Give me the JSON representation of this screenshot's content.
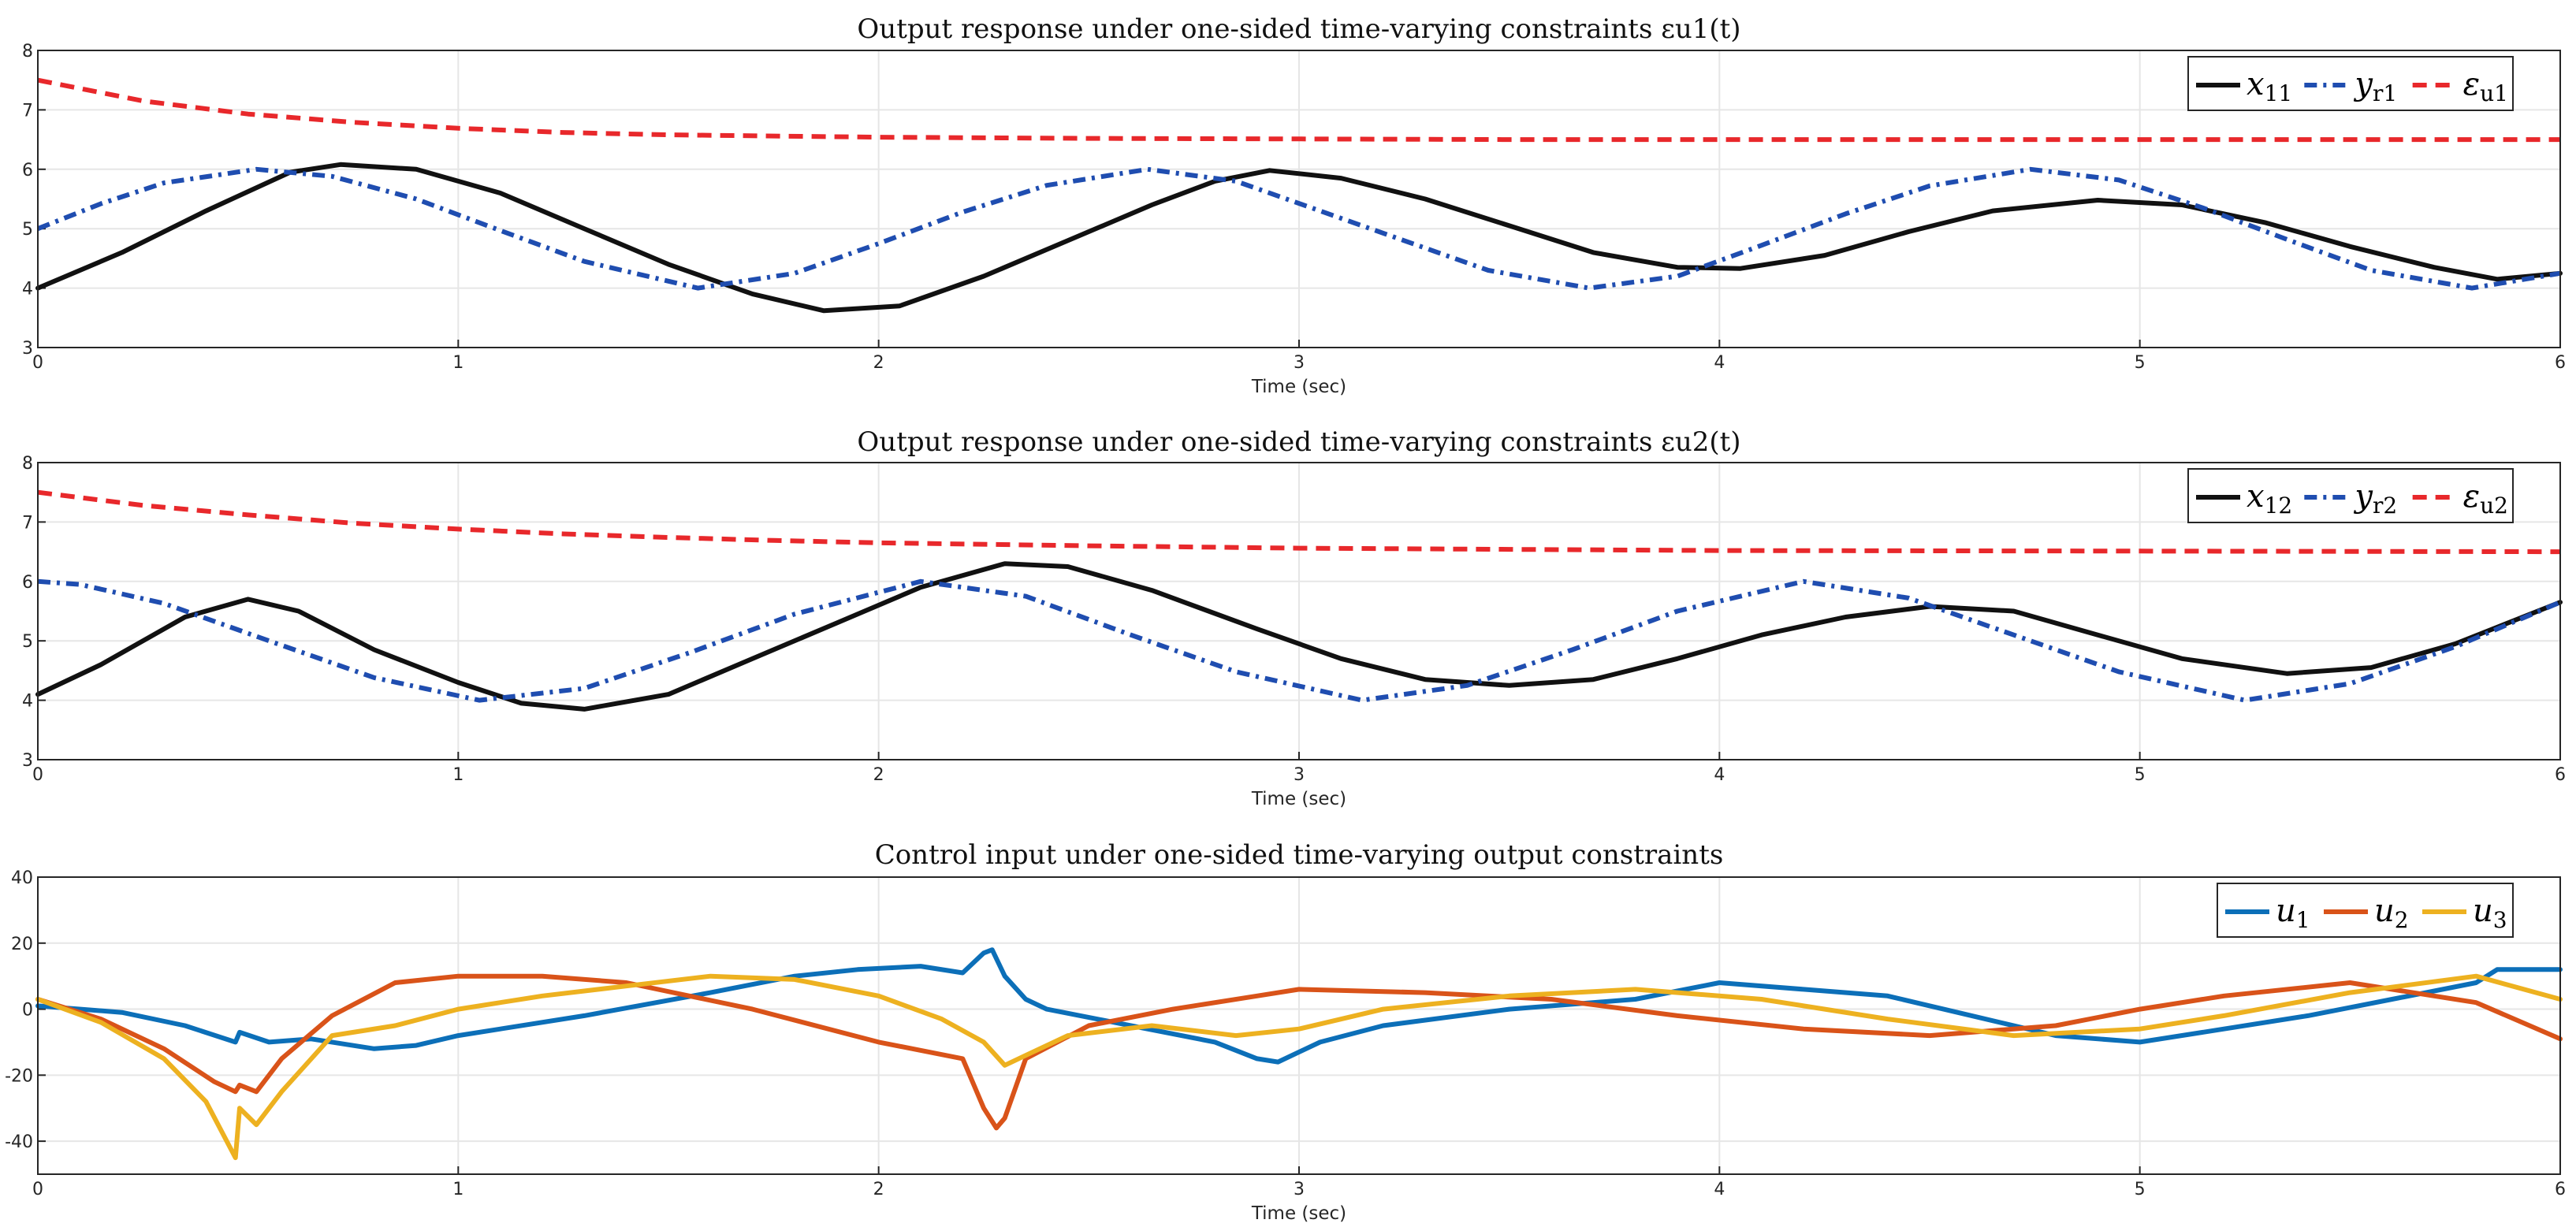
{
  "figure": {
    "background": "#ffffff"
  },
  "chart_data": [
    {
      "type": "line",
      "title": "Output response under one-sided time-varying constraints εu1(t)",
      "xlabel": "Time (sec)",
      "ylabel": "",
      "xlim": [
        0,
        6
      ],
      "ylim": [
        3,
        8
      ],
      "xticks": [
        "0",
        "1",
        "2",
        "3",
        "4",
        "5",
        "6"
      ],
      "yticks": [
        "3",
        "4",
        "5",
        "6",
        "7",
        "8"
      ],
      "grid": true,
      "legend_position": "top-right",
      "series": [
        {
          "name": "x11",
          "color": "#111111",
          "dash": "solid",
          "x": [
            0,
            0.2,
            0.4,
            0.6,
            0.72,
            0.9,
            1.1,
            1.3,
            1.5,
            1.7,
            1.87,
            2.05,
            2.25,
            2.45,
            2.65,
            2.8,
            2.93,
            3.1,
            3.3,
            3.5,
            3.7,
            3.9,
            4.05,
            4.25,
            4.45,
            4.65,
            4.9,
            5.1,
            5.3,
            5.5,
            5.7,
            5.85,
            6.0
          ],
          "y": [
            4.0,
            4.6,
            5.3,
            5.95,
            6.08,
            6.0,
            5.6,
            5.0,
            4.4,
            3.9,
            3.62,
            3.7,
            4.2,
            4.8,
            5.4,
            5.8,
            5.98,
            5.85,
            5.5,
            5.05,
            4.6,
            4.35,
            4.33,
            4.55,
            4.95,
            5.3,
            5.48,
            5.4,
            5.1,
            4.7,
            4.35,
            4.15,
            4.25
          ]
        },
        {
          "name": "yr1",
          "color": "#1f4db0",
          "dash": "dashdot",
          "x": [
            0,
            0.15,
            0.3,
            0.52,
            0.7,
            0.9,
            1.1,
            1.3,
            1.57,
            1.8,
            2.0,
            2.2,
            2.4,
            2.64,
            2.85,
            3.05,
            3.25,
            3.45,
            3.69,
            3.9,
            4.1,
            4.3,
            4.5,
            4.74,
            4.95,
            5.15,
            5.35,
            5.55,
            5.79,
            6.0
          ],
          "y": [
            5.0,
            5.42,
            5.77,
            6.0,
            5.88,
            5.5,
            4.97,
            4.45,
            4.0,
            4.25,
            4.75,
            5.28,
            5.73,
            6.0,
            5.8,
            5.3,
            4.8,
            4.3,
            4.0,
            4.2,
            4.72,
            5.25,
            5.72,
            6.0,
            5.82,
            5.35,
            4.82,
            4.3,
            4.0,
            4.25
          ]
        },
        {
          "name": "εu1",
          "color": "#e8282b",
          "dash": "dashed",
          "x": [
            0,
            0.25,
            0.5,
            0.75,
            1.0,
            1.25,
            1.5,
            1.75,
            2.0,
            2.5,
            3.0,
            3.5,
            4.0,
            5.0,
            6.0
          ],
          "y": [
            7.5,
            7.15,
            6.93,
            6.79,
            6.69,
            6.62,
            6.58,
            6.56,
            6.54,
            6.52,
            6.51,
            6.5,
            6.5,
            6.5,
            6.5
          ]
        }
      ]
    },
    {
      "type": "line",
      "title": "Output response under one-sided time-varying constraints εu2(t)",
      "xlabel": "Time (sec)",
      "ylabel": "",
      "xlim": [
        0,
        6
      ],
      "ylim": [
        3,
        8
      ],
      "xticks": [
        "0",
        "1",
        "2",
        "3",
        "4",
        "5",
        "6"
      ],
      "yticks": [
        "3",
        "4",
        "5",
        "6",
        "7",
        "8"
      ],
      "grid": true,
      "legend_position": "top-right",
      "series": [
        {
          "name": "x12",
          "color": "#111111",
          "dash": "solid",
          "x": [
            0,
            0.15,
            0.35,
            0.5,
            0.62,
            0.8,
            1.0,
            1.15,
            1.3,
            1.5,
            1.7,
            1.9,
            2.1,
            2.3,
            2.45,
            2.65,
            2.9,
            3.1,
            3.3,
            3.5,
            3.7,
            3.9,
            4.1,
            4.3,
            4.5,
            4.7,
            4.9,
            5.1,
            5.35,
            5.55,
            5.75,
            6.0
          ],
          "y": [
            4.1,
            4.6,
            5.4,
            5.7,
            5.5,
            4.85,
            4.3,
            3.95,
            3.85,
            4.1,
            4.7,
            5.3,
            5.9,
            6.3,
            6.25,
            5.85,
            5.2,
            4.7,
            4.35,
            4.25,
            4.35,
            4.7,
            5.1,
            5.4,
            5.58,
            5.5,
            5.1,
            4.7,
            4.45,
            4.55,
            4.95,
            5.65
          ]
        },
        {
          "name": "yr2",
          "color": "#1f4db0",
          "dash": "dashdot",
          "x": [
            0,
            0.1,
            0.3,
            0.55,
            0.8,
            1.05,
            1.3,
            1.55,
            1.8,
            2.1,
            2.35,
            2.6,
            2.85,
            3.15,
            3.4,
            3.65,
            3.9,
            4.2,
            4.45,
            4.7,
            4.95,
            5.25,
            5.5,
            5.75,
            6.0
          ],
          "y": [
            6.0,
            5.95,
            5.63,
            5.0,
            4.38,
            4.0,
            4.2,
            4.8,
            5.45,
            6.0,
            5.75,
            5.1,
            4.48,
            4.0,
            4.25,
            4.85,
            5.5,
            6.0,
            5.72,
            5.1,
            4.48,
            4.0,
            4.28,
            4.9,
            5.65
          ]
        },
        {
          "name": "εu2",
          "color": "#e8282b",
          "dash": "dashed",
          "x": [
            0,
            0.25,
            0.5,
            0.75,
            1.0,
            1.25,
            1.5,
            1.75,
            2.0,
            2.5,
            3.0,
            3.5,
            4.0,
            5.0,
            6.0
          ],
          "y": [
            7.5,
            7.28,
            7.12,
            6.98,
            6.88,
            6.8,
            6.74,
            6.69,
            6.65,
            6.6,
            6.56,
            6.54,
            6.52,
            6.51,
            6.5
          ]
        }
      ]
    },
    {
      "type": "line",
      "title": "Control input under one-sided time-varying output constraints",
      "xlabel": "Time (sec)",
      "ylabel": "",
      "xlim": [
        0,
        6
      ],
      "ylim": [
        -50,
        40
      ],
      "xticks": [
        "0",
        "1",
        "2",
        "3",
        "4",
        "5",
        "6"
      ],
      "yticks": [
        "-40",
        "-20",
        "0",
        "20",
        "40"
      ],
      "grid": true,
      "legend_position": "top-right",
      "series": [
        {
          "name": "u1",
          "color": "#0c6fb8",
          "dash": "solid",
          "x": [
            0,
            0.2,
            0.35,
            0.47,
            0.48,
            0.55,
            0.65,
            0.8,
            0.9,
            1.0,
            1.3,
            1.6,
            1.8,
            1.95,
            2.1,
            2.2,
            2.25,
            2.27,
            2.3,
            2.35,
            2.4,
            2.6,
            2.8,
            2.9,
            2.95,
            3.05,
            3.2,
            3.5,
            3.8,
            4.0,
            4.2,
            4.4,
            4.6,
            4.8,
            5.0,
            5.2,
            5.4,
            5.6,
            5.8,
            5.85,
            6.0
          ],
          "y": [
            1,
            -1,
            -5,
            -10,
            -7,
            -10,
            -9,
            -12,
            -11,
            -8,
            -2,
            5,
            10,
            12,
            13,
            11,
            17,
            18,
            10,
            3,
            0,
            -5,
            -10,
            -15,
            -16,
            -10,
            -5,
            0,
            3,
            8,
            6,
            4,
            -2,
            -8,
            -10,
            -6,
            -2,
            3,
            8,
            12,
            12
          ]
        },
        {
          "name": "u2",
          "color": "#d95319",
          "dash": "solid",
          "x": [
            0,
            0.15,
            0.3,
            0.42,
            0.47,
            0.48,
            0.52,
            0.58,
            0.7,
            0.85,
            1.0,
            1.2,
            1.4,
            1.7,
            2.0,
            2.2,
            2.25,
            2.28,
            2.3,
            2.35,
            2.5,
            2.7,
            2.9,
            3.0,
            3.3,
            3.6,
            3.9,
            4.2,
            4.5,
            4.8,
            5.0,
            5.2,
            5.5,
            5.8,
            6.0
          ],
          "y": [
            3,
            -3,
            -12,
            -22,
            -25,
            -23,
            -25,
            -15,
            -2,
            8,
            10,
            10,
            8,
            0,
            -10,
            -15,
            -30,
            -36,
            -33,
            -15,
            -5,
            0,
            4,
            6,
            5,
            3,
            -2,
            -6,
            -8,
            -5,
            0,
            4,
            8,
            2,
            -9
          ]
        },
        {
          "name": "u3",
          "color": "#edb120",
          "dash": "solid",
          "x": [
            0,
            0.15,
            0.3,
            0.4,
            0.47,
            0.48,
            0.52,
            0.58,
            0.7,
            0.85,
            1.0,
            1.2,
            1.4,
            1.6,
            1.8,
            2.0,
            2.15,
            2.25,
            2.3,
            2.35,
            2.45,
            2.65,
            2.85,
            3.0,
            3.2,
            3.5,
            3.8,
            4.1,
            4.4,
            4.7,
            5.0,
            5.2,
            5.5,
            5.8,
            6.0
          ],
          "y": [
            3,
            -4,
            -15,
            -28,
            -45,
            -30,
            -35,
            -25,
            -8,
            -5,
            0,
            4,
            7,
            10,
            9,
            4,
            -3,
            -10,
            -17,
            -14,
            -8,
            -5,
            -8,
            -6,
            0,
            4,
            6,
            3,
            -3,
            -8,
            -6,
            -2,
            5,
            10,
            3
          ]
        }
      ]
    }
  ]
}
